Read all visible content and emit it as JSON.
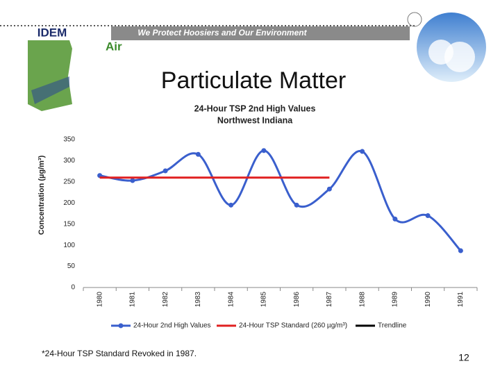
{
  "header": {
    "logo": "IDEM",
    "banner": "We Protect Hoosiers and Our Environment",
    "section": "Air"
  },
  "slide_title": "Particulate Matter",
  "chart_data": {
    "type": "line",
    "title": "24-Hour TSP 2nd High Values",
    "subtitle": "Northwest Indiana",
    "y_label": "Concentration (µg/m³)",
    "categories": [
      "1980",
      "1981",
      "1982",
      "1983",
      "1984",
      "1985",
      "1986",
      "1987",
      "1988",
      "1989",
      "1990",
      "1991"
    ],
    "series": [
      {
        "name": "24-Hour 2nd High Values",
        "color": "#3a5fcd",
        "smooth": true,
        "marker": "circle",
        "values": [
          265,
          253,
          276,
          315,
          195,
          324,
          195,
          233,
          322,
          162,
          170,
          87
        ]
      },
      {
        "name": "24-Hour TSP Standard (260 µg/m³)",
        "color": "#e02020",
        "smooth": false,
        "values": [
          260,
          260,
          260,
          260,
          260,
          260,
          260,
          260,
          null,
          null,
          null,
          null
        ]
      },
      {
        "name": "Trendline",
        "color": "#000000",
        "smooth": false,
        "values": [
          null,
          null,
          null,
          null,
          null,
          null,
          null,
          null,
          null,
          null,
          null,
          null
        ]
      }
    ],
    "ylim": [
      0,
      350
    ],
    "yticks": [
      0,
      50,
      100,
      150,
      200,
      250,
      300,
      350
    ],
    "grid": false,
    "legend": "bottom"
  },
  "footnote": "*24-Hour TSP Standard Revoked in 1987.",
  "page_number": 12
}
